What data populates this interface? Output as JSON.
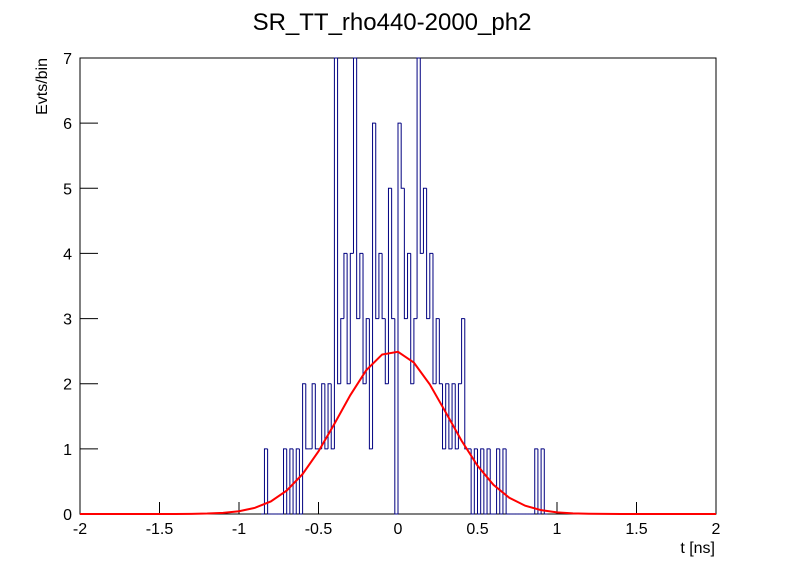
{
  "chart_data": {
    "type": "histogram",
    "title": "SR_TT_rho440-2000_ph2",
    "xlabel": "t [ns]",
    "ylabel": "Evts/bin",
    "color": "#000080",
    "bins": [
      -0.86,
      -0.84,
      -0.82,
      -0.8,
      -0.78,
      -0.76,
      -0.74,
      -0.72,
      -0.7,
      -0.68,
      -0.66,
      -0.64,
      -0.62,
      -0.6,
      -0.58,
      -0.56,
      -0.54,
      -0.52,
      -0.5,
      -0.48,
      -0.46,
      -0.44,
      -0.42,
      -0.4,
      -0.38,
      -0.36,
      -0.34,
      -0.32,
      -0.3,
      -0.28,
      -0.26,
      -0.24,
      -0.22,
      -0.2,
      -0.18,
      -0.16,
      -0.14,
      -0.12,
      -0.1,
      -0.08,
      -0.06,
      -0.04,
      -0.02,
      0.0,
      0.02,
      0.04,
      0.06,
      0.08,
      0.1,
      0.12,
      0.14,
      0.16,
      0.18,
      0.2,
      0.22,
      0.24,
      0.26,
      0.28,
      0.3,
      0.32,
      0.34,
      0.36,
      0.38,
      0.4,
      0.42,
      0.44,
      0.46,
      0.48,
      0.5,
      0.52,
      0.54,
      0.56,
      0.58,
      0.6,
      0.62,
      0.64,
      0.66,
      0.68,
      0.7,
      0.72,
      0.74,
      0.76,
      0.78,
      0.8,
      0.82,
      0.84,
      0.86,
      0.88,
      0.9,
      0.92,
      0.94
    ],
    "values": [
      0,
      1,
      0,
      0,
      0,
      0,
      0,
      1,
      0,
      1,
      0,
      1,
      0,
      2,
      1,
      1,
      2,
      1,
      1,
      2,
      1,
      2,
      1,
      7,
      2,
      3,
      4,
      2,
      4,
      7,
      3,
      4,
      2,
      3,
      1,
      6,
      3,
      4,
      3,
      2,
      5,
      3,
      0,
      6,
      5,
      3,
      4,
      2,
      3,
      7,
      4,
      5,
      3,
      4,
      2,
      3,
      2,
      1,
      2,
      1,
      2,
      1,
      2,
      3,
      1,
      1,
      0,
      1,
      0,
      1,
      0,
      1,
      0,
      0,
      1,
      0,
      1,
      0,
      0,
      0,
      0,
      0,
      0,
      0,
      0,
      0,
      1,
      0,
      1,
      0
    ],
    "fit": {
      "color": "#ff0000",
      "x": [
        -2,
        -1.9,
        -1.8,
        -1.7,
        -1.6,
        -1.5,
        -1.4,
        -1.3,
        -1.2,
        -1.1,
        -1,
        -0.9,
        -0.8,
        -0.7,
        -0.6,
        -0.5,
        -0.4,
        -0.3,
        -0.2,
        -0.1,
        0,
        0.1,
        0.2,
        0.3,
        0.4,
        0.5,
        0.6,
        0.7,
        0.8,
        0.9,
        1,
        1.1,
        1.2,
        1.3,
        1.4,
        1.5,
        1.6,
        1.7,
        1.8,
        1.9,
        2
      ],
      "values": [
        0,
        0,
        0,
        0,
        0,
        0,
        0,
        0.002,
        0.007,
        0.018,
        0.043,
        0.095,
        0.193,
        0.359,
        0.613,
        0.962,
        1.383,
        1.824,
        2.206,
        2.448,
        2.49,
        2.324,
        1.989,
        1.561,
        1.124,
        0.742,
        0.449,
        0.249,
        0.127,
        0.059,
        0.025,
        0.01,
        0.004,
        0.001,
        0,
        0,
        0,
        0,
        0,
        0,
        0
      ]
    },
    "xlim": [
      -2,
      2
    ],
    "ylim": [
      0,
      7
    ],
    "xticks": [
      -2,
      -1.5,
      -1,
      -0.5,
      0,
      0.5,
      1,
      1.5,
      2
    ],
    "yticks": [
      0,
      1,
      2,
      3,
      4,
      5,
      6,
      7
    ]
  }
}
